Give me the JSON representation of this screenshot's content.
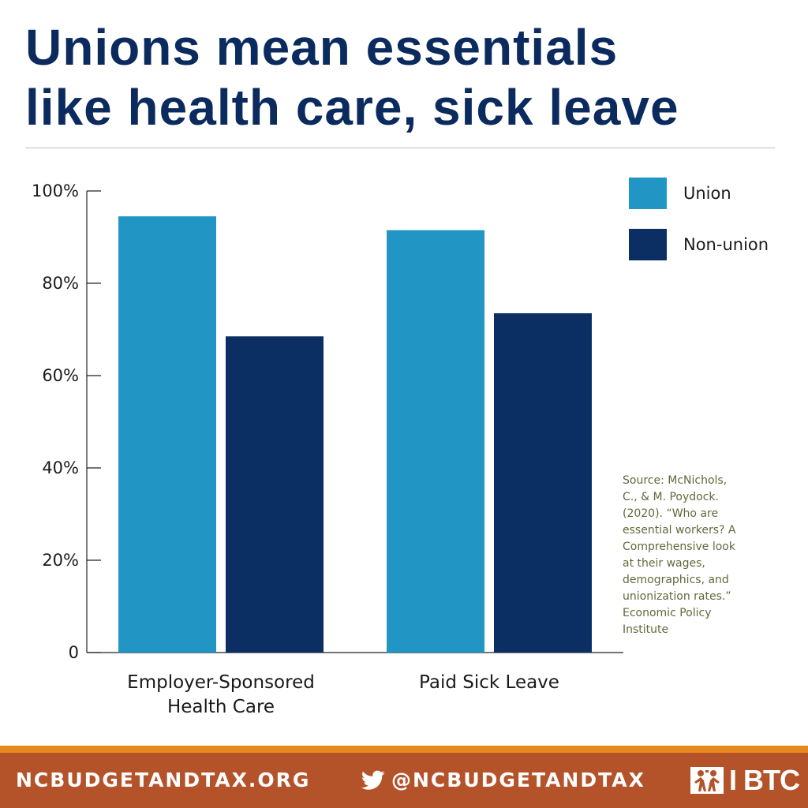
{
  "title_lines": [
    "Unions mean essentials",
    "like health care, sick leave"
  ],
  "chart_data": {
    "type": "bar",
    "categories": [
      [
        "Employer-Sponsored",
        "Health Care"
      ],
      [
        "Paid Sick Leave"
      ]
    ],
    "series": [
      {
        "name": "Union",
        "color": "#2196c4",
        "values": [
          94.5,
          91.5
        ]
      },
      {
        "name": "Non-union",
        "color": "#0b2f63",
        "values": [
          68.5,
          73.5
        ]
      }
    ],
    "ylim": [
      0,
      100
    ],
    "yticks": [
      0,
      20,
      40,
      60,
      80,
      100
    ],
    "ytick_labels": [
      "0",
      "20%",
      "40%",
      "60%",
      "80%",
      "100%"
    ],
    "legend_position": "top-right",
    "grid": false
  },
  "source_lines": [
    "Source: McNichols,",
    "C., & M. Poydock.",
    "(2020). “Who are",
    "essential workers? A",
    "Comprehensive look",
    "at their wages,",
    "demographics, and",
    "unionization rates.”",
    "Economic Policy",
    "Institute"
  ],
  "footer": {
    "website": "NCBUDGETANDTAX.ORG",
    "twitter_handle": "@NCBUDGETANDTAX",
    "logo_text": "BTC",
    "twitter_icon": "twitter-bird-icon",
    "logo_icon": "btc-figures-icon",
    "background_color": "#b4522a",
    "stripe_color": "#e8891e"
  }
}
